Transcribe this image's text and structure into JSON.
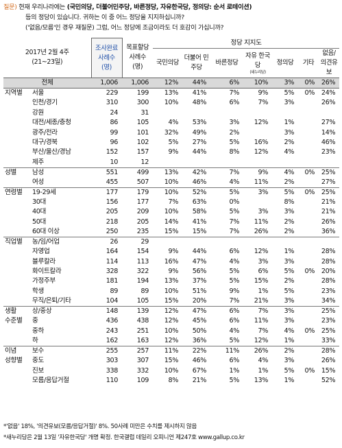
{
  "question": {
    "label": "질문)",
    "line1_pre": "현재 우리나라에는",
    "line1_parties": "(국민의당, 더불어민주당, 바른정당, 자유한국당, 정의당: 순서 로테이션)",
    "line2": "등의 정당이 있습니다. 귀하는 이 중 어느 정당을 지지하십니까?",
    "line3": "('없음/모름'인 경우 재질문) 그럼, 어느 정당에 조금이라도 더 호감이 가십니까?"
  },
  "header": {
    "period": "2017년 2월 4주",
    "period_dates": "(21~23일)",
    "completed": "조사완료 사례수 (명)",
    "weighted": "목표할당 사례수 (명)",
    "group": "정당 지지도",
    "cols": [
      "국민의당",
      "더불어 민주당",
      "바른정당",
      "자유 한국당",
      "정의당",
      "기타",
      "없음/ 의견유보"
    ],
    "liberty_note": "(새누리당)"
  },
  "total": {
    "label": "전체",
    "n1": "1,006",
    "n2": "1,006",
    "v": [
      "12%",
      "44%",
      "6%",
      "10%",
      "3%",
      "0%",
      "26%"
    ]
  },
  "rows": [
    {
      "grp": "지역별",
      "sub": "서울",
      "n1": "229",
      "n2": "199",
      "v": [
        "13%",
        "41%",
        "7%",
        "9%",
        "5%",
        "0%",
        "24%"
      ]
    },
    {
      "grp": "",
      "sub": "인천/경기",
      "n1": "310",
      "n2": "300",
      "v": [
        "10%",
        "48%",
        "6%",
        "7%",
        "3%",
        "",
        "26%"
      ]
    },
    {
      "grp": "",
      "sub": "강원",
      "n1": "24",
      "n2": "31",
      "v": [
        "",
        "",
        "",
        "",
        "",
        "",
        ""
      ]
    },
    {
      "grp": "",
      "sub": "대전/세종/충청",
      "n1": "86",
      "n2": "105",
      "v": [
        "4%",
        "53%",
        "3%",
        "12%",
        "1%",
        "",
        "27%"
      ]
    },
    {
      "grp": "",
      "sub": "광주/전라",
      "n1": "99",
      "n2": "101",
      "v": [
        "32%",
        "49%",
        "2%",
        "",
        "3%",
        "",
        "14%"
      ]
    },
    {
      "grp": "",
      "sub": "대구/경북",
      "n1": "96",
      "n2": "102",
      "v": [
        "5%",
        "27%",
        "5%",
        "16%",
        "2%",
        "",
        "46%"
      ]
    },
    {
      "grp": "",
      "sub": "부산/울산/경남",
      "n1": "152",
      "n2": "157",
      "v": [
        "9%",
        "44%",
        "8%",
        "12%",
        "4%",
        "",
        "23%"
      ]
    },
    {
      "grp": "",
      "sub": "제주",
      "n1": "10",
      "n2": "12",
      "v": [
        "",
        "",
        "",
        "",
        "",
        "",
        ""
      ]
    },
    {
      "grp": "성별",
      "sub": "남성",
      "n1": "551",
      "n2": "499",
      "v": [
        "13%",
        "42%",
        "7%",
        "9%",
        "4%",
        "0%",
        "25%"
      ],
      "sep": true
    },
    {
      "grp": "",
      "sub": "여성",
      "n1": "455",
      "n2": "507",
      "v": [
        "10%",
        "46%",
        "4%",
        "11%",
        "2%",
        "",
        "27%"
      ]
    },
    {
      "grp": "연령별",
      "sub": "19-29세",
      "n1": "177",
      "n2": "179",
      "v": [
        "10%",
        "52%",
        "5%",
        "3%",
        "5%",
        "0%",
        "25%"
      ],
      "sep": true
    },
    {
      "grp": "",
      "sub": "30대",
      "n1": "156",
      "n2": "177",
      "v": [
        "7%",
        "63%",
        "0%",
        "",
        "8%",
        "",
        "21%"
      ]
    },
    {
      "grp": "",
      "sub": "40대",
      "n1": "205",
      "n2": "209",
      "v": [
        "10%",
        "58%",
        "5%",
        "3%",
        "3%",
        "",
        "21%"
      ]
    },
    {
      "grp": "",
      "sub": "50대",
      "n1": "218",
      "n2": "205",
      "v": [
        "14%",
        "41%",
        "7%",
        "11%",
        "2%",
        "",
        "26%"
      ]
    },
    {
      "grp": "",
      "sub": "60대 이상",
      "n1": "250",
      "n2": "235",
      "v": [
        "15%",
        "15%",
        "7%",
        "26%",
        "2%",
        "",
        "36%"
      ]
    },
    {
      "grp": "직업별",
      "sub": "농/임/어업",
      "n1": "26",
      "n2": "29",
      "v": [
        "",
        "",
        "",
        "",
        "",
        "",
        ""
      ],
      "sep": true
    },
    {
      "grp": "",
      "sub": "자영업",
      "n1": "164",
      "n2": "154",
      "v": [
        "9%",
        "44%",
        "6%",
        "12%",
        "1%",
        "",
        "28%"
      ]
    },
    {
      "grp": "",
      "sub": "블루칼라",
      "n1": "114",
      "n2": "113",
      "v": [
        "16%",
        "47%",
        "4%",
        "3%",
        "3%",
        "",
        "28%"
      ]
    },
    {
      "grp": "",
      "sub": "화이트칼라",
      "n1": "328",
      "n2": "322",
      "v": [
        "9%",
        "56%",
        "5%",
        "6%",
        "5%",
        "0%",
        "20%"
      ]
    },
    {
      "grp": "",
      "sub": "가정주부",
      "n1": "181",
      "n2": "194",
      "v": [
        "13%",
        "37%",
        "5%",
        "15%",
        "2%",
        "",
        "28%"
      ]
    },
    {
      "grp": "",
      "sub": "학생",
      "n1": "89",
      "n2": "89",
      "v": [
        "10%",
        "51%",
        "9%",
        "1%",
        "5%",
        "",
        "23%"
      ]
    },
    {
      "grp": "",
      "sub": "무직/은퇴/기타",
      "n1": "104",
      "n2": "105",
      "v": [
        "15%",
        "20%",
        "7%",
        "21%",
        "3%",
        "",
        "34%"
      ]
    },
    {
      "grp": "생활",
      "sub": "상/중상",
      "n1": "148",
      "n2": "139",
      "v": [
        "12%",
        "47%",
        "6%",
        "7%",
        "3%",
        "",
        "25%"
      ],
      "sep": true
    },
    {
      "grp": "수준별",
      "sub": "중",
      "n1": "436",
      "n2": "438",
      "v": [
        "12%",
        "45%",
        "6%",
        "11%",
        "3%",
        "",
        "23%"
      ]
    },
    {
      "grp": "",
      "sub": "중하",
      "n1": "243",
      "n2": "251",
      "v": [
        "10%",
        "50%",
        "4%",
        "7%",
        "4%",
        "0%",
        "25%"
      ]
    },
    {
      "grp": "",
      "sub": "하",
      "n1": "162",
      "n2": "163",
      "v": [
        "12%",
        "36%",
        "5%",
        "12%",
        "1%",
        "",
        "33%"
      ]
    },
    {
      "grp": "이념",
      "sub": "보수",
      "n1": "255",
      "n2": "257",
      "v": [
        "11%",
        "22%",
        "11%",
        "26%",
        "2%",
        "",
        "28%"
      ],
      "sep": true
    },
    {
      "grp": "성향별",
      "sub": "중도",
      "n1": "303",
      "n2": "307",
      "v": [
        "15%",
        "46%",
        "6%",
        "4%",
        "3%",
        "",
        "26%"
      ]
    },
    {
      "grp": "",
      "sub": "진보",
      "n1": "338",
      "n2": "332",
      "v": [
        "10%",
        "67%",
        "1%",
        "1%",
        "5%",
        "0%",
        "15%"
      ]
    },
    {
      "grp": "",
      "sub": "모름/응답거절",
      "n1": "110",
      "n2": "109",
      "v": [
        "8%",
        "21%",
        "5%",
        "13%",
        "1%",
        "",
        "52%"
      ]
    }
  ],
  "footer": {
    "line1": "*'없음' 18%, '의견유보(모름/응답거절)' 8%. 50사례 미만은 수치를 제시하지 않음",
    "line2": "*새누리당은 2월 13일 '자유한국당' 개명 확정. 한국갤럽 데일리 오피니언 제247호 www.gallup.co.kr"
  }
}
